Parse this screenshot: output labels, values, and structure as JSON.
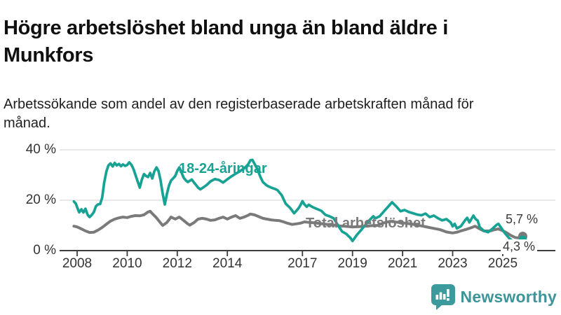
{
  "title": "Högre arbetslöshet bland unga än bland äldre i Munkfors",
  "subtitle": "Arbetssökande som andel av den registerbaserade arbetskraften månad för månad.",
  "branding": {
    "wordmark": "Newsworthy",
    "icon": "bar-chart-speech-bubble-icon",
    "icon_color": "#3a9a9c",
    "text_color": "#3d9599"
  },
  "chart_data": {
    "type": "line",
    "title": "Högre arbetslöshet bland unga än bland äldre i Munkfors",
    "xlabel": "",
    "ylabel": "",
    "unit": "%",
    "grid": "horizontal-only",
    "xlim": [
      2007.3,
      2027.1
    ],
    "ylim": [
      0,
      42
    ],
    "x_ticks": [
      2008,
      2010,
      2012,
      2014,
      2017,
      2019,
      2021,
      2023,
      2025
    ],
    "x_tick_labels": [
      "2008",
      "2010",
      "2012",
      "2014",
      "2017",
      "2019",
      "2021",
      "2023",
      "2025"
    ],
    "y_ticks": [
      0,
      20,
      40
    ],
    "y_tick_labels": [
      "0 %",
      "20 %",
      "40 %"
    ],
    "axis_color": "#3c3c3c",
    "grid_color": "#dadada",
    "series": [
      {
        "name": "Total arbetslöshet",
        "color": "#7a7a7a",
        "end_label": "5,7 %",
        "end_value": 5.7,
        "points": [
          [
            2007.87,
            9.7
          ],
          [
            2008.0,
            9.4
          ],
          [
            2008.17,
            8.6
          ],
          [
            2008.33,
            7.8
          ],
          [
            2008.5,
            7.2
          ],
          [
            2008.67,
            7.3
          ],
          [
            2008.83,
            8.1
          ],
          [
            2009.0,
            9.2
          ],
          [
            2009.17,
            10.5
          ],
          [
            2009.33,
            11.7
          ],
          [
            2009.5,
            12.5
          ],
          [
            2009.67,
            13.0
          ],
          [
            2009.83,
            13.3
          ],
          [
            2010.0,
            13.1
          ],
          [
            2010.17,
            13.6
          ],
          [
            2010.33,
            13.9
          ],
          [
            2010.5,
            13.8
          ],
          [
            2010.67,
            14.2
          ],
          [
            2010.83,
            15.3
          ],
          [
            2010.92,
            15.6
          ],
          [
            2011.0,
            14.7
          ],
          [
            2011.17,
            13.0
          ],
          [
            2011.33,
            11.0
          ],
          [
            2011.42,
            10.0
          ],
          [
            2011.58,
            11.1
          ],
          [
            2011.75,
            13.3
          ],
          [
            2011.92,
            12.5
          ],
          [
            2012.08,
            13.3
          ],
          [
            2012.25,
            12.0
          ],
          [
            2012.42,
            10.6
          ],
          [
            2012.5,
            10.1
          ],
          [
            2012.67,
            11.1
          ],
          [
            2012.83,
            12.5
          ],
          [
            2013.0,
            12.8
          ],
          [
            2013.17,
            12.5
          ],
          [
            2013.33,
            12.0
          ],
          [
            2013.5,
            12.2
          ],
          [
            2013.67,
            12.8
          ],
          [
            2013.83,
            13.3
          ],
          [
            2014.0,
            12.5
          ],
          [
            2014.17,
            13.3
          ],
          [
            2014.33,
            13.9
          ],
          [
            2014.5,
            12.8
          ],
          [
            2014.67,
            13.3
          ],
          [
            2014.83,
            14.0
          ],
          [
            2014.92,
            14.5
          ],
          [
            2015.08,
            14.2
          ],
          [
            2015.25,
            13.5
          ],
          [
            2015.42,
            12.8
          ],
          [
            2015.58,
            12.5
          ],
          [
            2015.75,
            12.2
          ],
          [
            2015.92,
            12.0
          ],
          [
            2016.08,
            11.9
          ],
          [
            2016.25,
            11.4
          ],
          [
            2016.42,
            10.8
          ],
          [
            2016.58,
            10.4
          ],
          [
            2016.75,
            10.6
          ],
          [
            2016.92,
            10.9
          ],
          [
            2017.08,
            11.4
          ],
          [
            2017.25,
            11.2
          ],
          [
            2017.5,
            11.0
          ],
          [
            2017.75,
            10.7
          ],
          [
            2018.0,
            10.4
          ],
          [
            2018.25,
            10.2
          ],
          [
            2018.5,
            9.8
          ],
          [
            2018.75,
            9.6
          ],
          [
            2019.0,
            9.4
          ],
          [
            2019.25,
            9.5
          ],
          [
            2019.5,
            9.7
          ],
          [
            2019.75,
            9.9
          ],
          [
            2020.0,
            10.0
          ],
          [
            2020.25,
            11.0
          ],
          [
            2020.5,
            11.6
          ],
          [
            2020.75,
            11.3
          ],
          [
            2021.0,
            11.0
          ],
          [
            2021.25,
            10.7
          ],
          [
            2021.5,
            10.3
          ],
          [
            2021.75,
            9.8
          ],
          [
            2022.0,
            9.3
          ],
          [
            2022.25,
            8.8
          ],
          [
            2022.5,
            8.3
          ],
          [
            2022.75,
            7.4
          ],
          [
            2023.0,
            7.0
          ],
          [
            2023.17,
            7.3
          ],
          [
            2023.33,
            7.8
          ],
          [
            2023.5,
            8.3
          ],
          [
            2023.75,
            9.1
          ],
          [
            2023.9,
            9.7
          ],
          [
            2024.08,
            8.6
          ],
          [
            2024.25,
            7.8
          ],
          [
            2024.5,
            7.8
          ],
          [
            2024.67,
            8.3
          ],
          [
            2024.83,
            8.6
          ],
          [
            2025.0,
            7.9
          ],
          [
            2025.17,
            7.0
          ],
          [
            2025.33,
            6.0
          ],
          [
            2025.5,
            5.2
          ],
          [
            2025.67,
            5.0
          ],
          [
            2025.8,
            5.7
          ]
        ]
      },
      {
        "name": "18-24-åringar",
        "color": "#17a294",
        "end_label": "4,3 %",
        "end_value": 4.3,
        "points": [
          [
            2007.87,
            19.5
          ],
          [
            2007.95,
            18.6
          ],
          [
            2008.0,
            17.2
          ],
          [
            2008.08,
            15.2
          ],
          [
            2008.17,
            16.4
          ],
          [
            2008.25,
            15.1
          ],
          [
            2008.33,
            16.6
          ],
          [
            2008.42,
            14.2
          ],
          [
            2008.5,
            13.3
          ],
          [
            2008.58,
            14.1
          ],
          [
            2008.67,
            15.3
          ],
          [
            2008.75,
            17.6
          ],
          [
            2008.83,
            18.3
          ],
          [
            2008.92,
            18.5
          ],
          [
            2009.0,
            21.0
          ],
          [
            2009.08,
            27.0
          ],
          [
            2009.17,
            31.5
          ],
          [
            2009.25,
            33.8
          ],
          [
            2009.33,
            34.6
          ],
          [
            2009.42,
            33.4
          ],
          [
            2009.5,
            34.8
          ],
          [
            2009.58,
            33.8
          ],
          [
            2009.67,
            34.4
          ],
          [
            2009.75,
            33.5
          ],
          [
            2009.83,
            34.2
          ],
          [
            2009.92,
            33.6
          ],
          [
            2010.0,
            34.0
          ],
          [
            2010.08,
            35.0
          ],
          [
            2010.17,
            34.0
          ],
          [
            2010.25,
            32.4
          ],
          [
            2010.33,
            30.0
          ],
          [
            2010.42,
            27.4
          ],
          [
            2010.5,
            25.0
          ],
          [
            2010.58,
            28.0
          ],
          [
            2010.67,
            30.4
          ],
          [
            2010.75,
            29.6
          ],
          [
            2010.83,
            29.2
          ],
          [
            2010.92,
            30.8
          ],
          [
            2011.0,
            28.6
          ],
          [
            2011.08,
            31.4
          ],
          [
            2011.17,
            33.0
          ],
          [
            2011.25,
            31.6
          ],
          [
            2011.33,
            28.0
          ],
          [
            2011.42,
            22.4
          ],
          [
            2011.5,
            18.3
          ],
          [
            2011.58,
            22.2
          ],
          [
            2011.67,
            25.8
          ],
          [
            2011.75,
            27.8
          ],
          [
            2011.83,
            28.6
          ],
          [
            2011.92,
            29.6
          ],
          [
            2012.0,
            31.6
          ],
          [
            2012.08,
            33.0
          ],
          [
            2012.17,
            31.0
          ],
          [
            2012.25,
            29.0
          ],
          [
            2012.33,
            28.0
          ],
          [
            2012.42,
            27.2
          ],
          [
            2012.5,
            27.7
          ],
          [
            2012.58,
            28.2
          ],
          [
            2012.67,
            27.0
          ],
          [
            2012.75,
            26.0
          ],
          [
            2012.83,
            25.0
          ],
          [
            2012.92,
            24.3
          ],
          [
            2013.0,
            24.8
          ],
          [
            2013.17,
            26.0
          ],
          [
            2013.33,
            27.5
          ],
          [
            2013.5,
            28.4
          ],
          [
            2013.67,
            28.0
          ],
          [
            2013.83,
            27.0
          ],
          [
            2014.0,
            28.3
          ],
          [
            2014.17,
            29.5
          ],
          [
            2014.33,
            30.5
          ],
          [
            2014.5,
            31.5
          ],
          [
            2014.67,
            32.6
          ],
          [
            2014.83,
            34.2
          ],
          [
            2014.92,
            35.8
          ],
          [
            2015.0,
            36.0
          ],
          [
            2015.08,
            34.5
          ],
          [
            2015.17,
            33.0
          ],
          [
            2015.25,
            31.0
          ],
          [
            2015.33,
            29.0
          ],
          [
            2015.42,
            27.2
          ],
          [
            2015.58,
            25.8
          ],
          [
            2015.75,
            25.0
          ],
          [
            2015.92,
            24.4
          ],
          [
            2016.0,
            24.0
          ],
          [
            2016.17,
            22.0
          ],
          [
            2016.33,
            18.6
          ],
          [
            2016.5,
            17.0
          ],
          [
            2016.67,
            14.8
          ],
          [
            2016.83,
            16.6
          ],
          [
            2016.92,
            18.0
          ],
          [
            2017.0,
            19.6
          ],
          [
            2017.08,
            18.3
          ],
          [
            2017.17,
            17.4
          ],
          [
            2017.25,
            18.2
          ],
          [
            2017.42,
            17.2
          ],
          [
            2017.58,
            16.5
          ],
          [
            2017.75,
            15.8
          ],
          [
            2017.92,
            14.2
          ],
          [
            2018.08,
            13.6
          ],
          [
            2018.25,
            12.8
          ],
          [
            2018.42,
            10.0
          ],
          [
            2018.58,
            7.6
          ],
          [
            2018.75,
            6.6
          ],
          [
            2018.92,
            5.0
          ],
          [
            2019.0,
            3.8
          ],
          [
            2019.17,
            6.2
          ],
          [
            2019.33,
            8.0
          ],
          [
            2019.5,
            10.0
          ],
          [
            2019.67,
            12.0
          ],
          [
            2019.83,
            13.6
          ],
          [
            2019.92,
            12.8
          ],
          [
            2020.08,
            13.6
          ],
          [
            2020.25,
            15.5
          ],
          [
            2020.42,
            17.4
          ],
          [
            2020.58,
            19.2
          ],
          [
            2020.75,
            17.5
          ],
          [
            2020.92,
            15.6
          ],
          [
            2021.08,
            16.1
          ],
          [
            2021.25,
            15.3
          ],
          [
            2021.42,
            14.8
          ],
          [
            2021.58,
            14.3
          ],
          [
            2021.75,
            14.0
          ],
          [
            2021.92,
            14.7
          ],
          [
            2022.08,
            13.3
          ],
          [
            2022.25,
            13.9
          ],
          [
            2022.42,
            12.8
          ],
          [
            2022.58,
            12.0
          ],
          [
            2022.75,
            12.5
          ],
          [
            2022.92,
            11.2
          ],
          [
            2023.0,
            9.6
          ],
          [
            2023.08,
            10.6
          ],
          [
            2023.17,
            8.8
          ],
          [
            2023.33,
            9.7
          ],
          [
            2023.5,
            12.1
          ],
          [
            2023.58,
            13.0
          ],
          [
            2023.67,
            11.2
          ],
          [
            2023.83,
            13.9
          ],
          [
            2023.92,
            12.5
          ],
          [
            2024.0,
            11.9
          ],
          [
            2024.08,
            9.3
          ],
          [
            2024.25,
            7.8
          ],
          [
            2024.42,
            7.3
          ],
          [
            2024.58,
            8.6
          ],
          [
            2024.75,
            10.2
          ],
          [
            2024.83,
            10.6
          ],
          [
            2024.92,
            9.3
          ],
          [
            2025.08,
            7.0
          ],
          [
            2025.25,
            5.0
          ],
          [
            2025.42,
            3.6
          ],
          [
            2025.5,
            3.1
          ],
          [
            2025.67,
            3.5
          ],
          [
            2025.8,
            4.3
          ]
        ]
      }
    ]
  }
}
